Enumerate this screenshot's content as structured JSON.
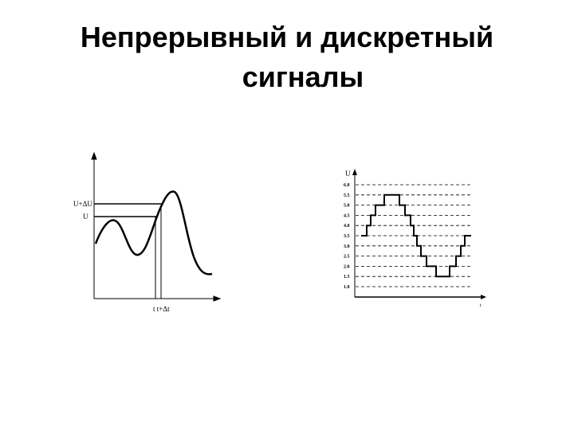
{
  "title": {
    "line1": "Непрерывный и дискретный",
    "line2": "сигналы"
  },
  "continuous": {
    "y_labels": [
      "U+ΔU",
      "U"
    ],
    "x_label": "t t+Δt"
  },
  "discrete": {
    "axis_label": "U",
    "x_axis_label": "t",
    "levels": [
      "6.0",
      "5.5",
      "5.0",
      "4.5",
      "4.0",
      "3.5",
      "3.0",
      "2.5",
      "2.0",
      "1.5",
      "1.0"
    ],
    "steps": [
      3.5,
      4.0,
      4.5,
      5.0,
      5.5,
      5.0,
      4.5,
      4.0,
      3.5,
      3.0,
      2.5,
      2.0,
      1.5,
      2.0,
      2.5,
      3.0,
      3.5
    ]
  }
}
